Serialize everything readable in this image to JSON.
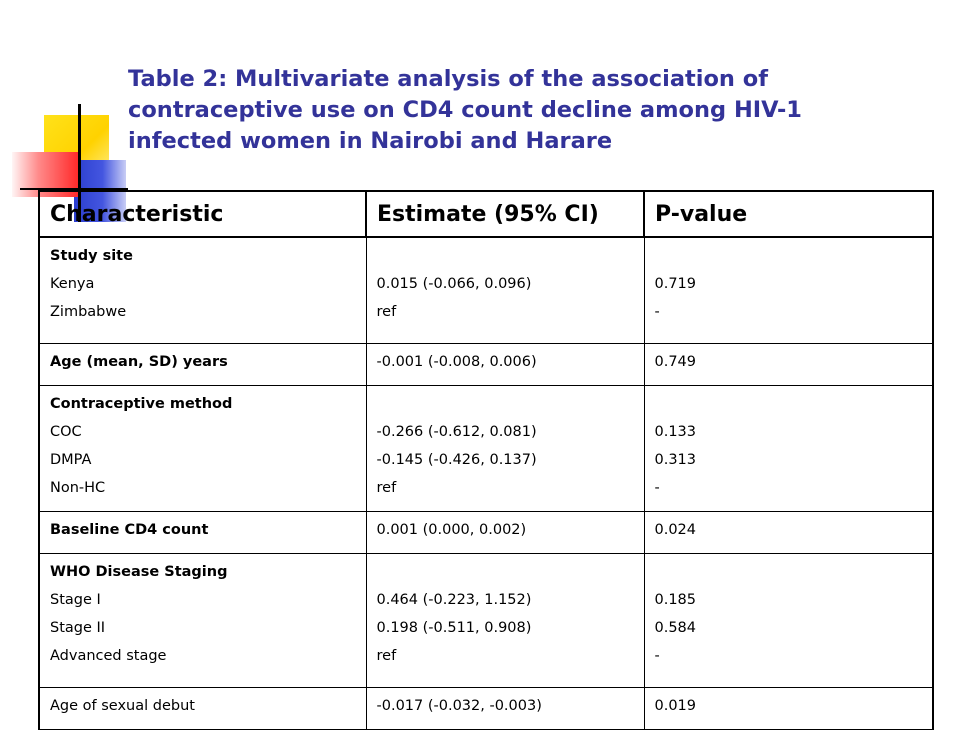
{
  "title_lines": [
    "Table 2: Multivariate analysis of the association of",
    "contraceptive use on CD4 count decline among HIV-1",
    "infected women in Nairobi and Harare"
  ],
  "table": {
    "headers": [
      "Characteristic",
      "Estimate (95% CI)",
      "P-value"
    ],
    "rows": {
      "study_site": {
        "group": "Study site",
        "labels": [
          "Kenya",
          "Zimbabwe"
        ],
        "estimates": [
          "0.015 (-0.066, 0.096)",
          "ref"
        ],
        "pvalues": [
          "0.719",
          "-"
        ]
      },
      "age": {
        "label": "Age (mean, SD) years",
        "estimate": "-0.001 (-0.008, 0.006)",
        "pvalue": "0.749"
      },
      "contraceptive": {
        "group": "Contraceptive method",
        "labels": [
          "COC",
          "DMPA",
          "Non-HC"
        ],
        "estimates": [
          "-0.266 (-0.612, 0.081)",
          "-0.145 (-0.426, 0.137)",
          "ref"
        ],
        "pvalues": [
          "0.133",
          "0.313",
          "-"
        ]
      },
      "baseline_cd4": {
        "label": "Baseline CD4 count",
        "estimate": "0.001 (0.000, 0.002)",
        "pvalue": "0.024"
      },
      "who_staging": {
        "group": "WHO Disease Staging",
        "labels": [
          "Stage I",
          "Stage II",
          "Advanced stage"
        ],
        "estimates": [
          "0.464 (-0.223, 1.152)",
          "0.198 (-0.511, 0.908)",
          "ref"
        ],
        "pvalues": [
          "0.185",
          "0.584",
          "-"
        ]
      },
      "sexual_debut": {
        "label": "Age of sexual debut",
        "estimate": "-0.017 (-0.032, -0.003)",
        "pvalue": "0.019"
      }
    }
  },
  "colors": {
    "title": "#333399",
    "deco_yellow": "#ffd200",
    "deco_blue": "#2b3ecf",
    "deco_red": "#ff2a2a"
  }
}
